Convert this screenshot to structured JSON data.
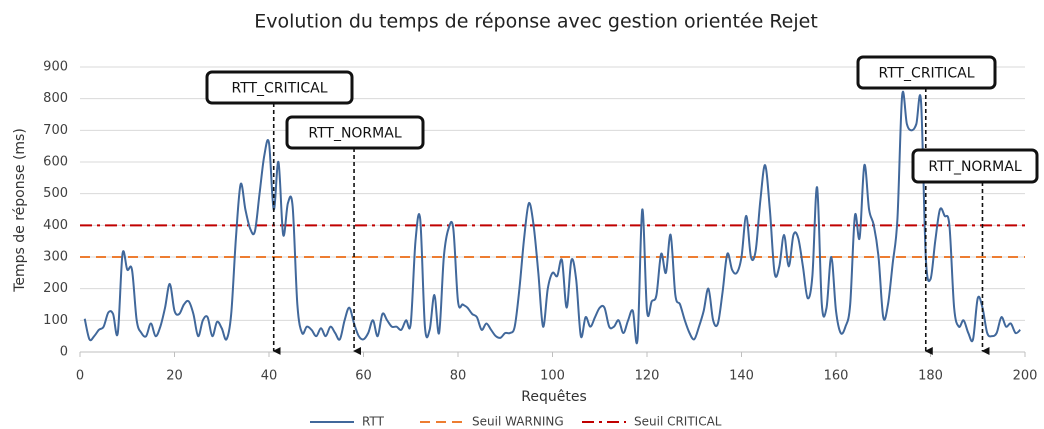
{
  "chart_data": {
    "type": "line",
    "title": "Evolution du temps de réponse avec gestion orientée Rejet",
    "x_label": "Requêtes",
    "y_label": "Temps de réponse (ms)",
    "x": [
      1,
      2,
      3,
      4,
      5,
      6,
      7,
      8,
      9,
      10,
      11,
      12,
      13,
      14,
      15,
      16,
      17,
      18,
      19,
      20,
      21,
      22,
      23,
      24,
      25,
      26,
      27,
      28,
      29,
      30,
      31,
      32,
      33,
      34,
      35,
      36,
      37,
      38,
      39,
      40,
      41,
      42,
      43,
      44,
      45,
      46,
      47,
      48,
      49,
      50,
      51,
      52,
      53,
      54,
      55,
      56,
      57,
      58,
      59,
      60,
      61,
      62,
      63,
      64,
      65,
      66,
      67,
      68,
      69,
      70,
      71,
      72,
      73,
      74,
      75,
      76,
      77,
      78,
      79,
      80,
      81,
      82,
      83,
      84,
      85,
      86,
      87,
      88,
      89,
      90,
      91,
      92,
      93,
      94,
      95,
      96,
      97,
      98,
      99,
      100,
      101,
      102,
      103,
      104,
      105,
      106,
      107,
      108,
      109,
      110,
      111,
      112,
      113,
      114,
      115,
      116,
      117,
      118,
      119,
      120,
      121,
      122,
      123,
      124,
      125,
      126,
      127,
      128,
      129,
      130,
      131,
      132,
      133,
      134,
      135,
      136,
      137,
      138,
      139,
      140,
      141,
      142,
      143,
      144,
      145,
      146,
      147,
      148,
      149,
      150,
      151,
      152,
      153,
      154,
      155,
      156,
      157,
      158,
      159,
      160,
      161,
      162,
      163,
      164,
      165,
      166,
      167,
      168,
      169,
      170,
      171,
      172,
      173,
      174,
      175,
      176,
      177,
      178,
      179,
      180,
      181,
      182,
      183,
      184,
      185,
      186,
      187,
      188,
      189,
      190,
      191,
      192,
      193,
      194,
      195,
      196,
      197,
      198,
      199
    ],
    "series": [
      {
        "name": "RTT",
        "color": "#41689b",
        "values": [
          105,
          40,
          50,
          70,
          80,
          125,
          120,
          60,
          310,
          260,
          260,
          100,
          60,
          50,
          90,
          50,
          80,
          140,
          215,
          130,
          120,
          150,
          160,
          120,
          50,
          100,
          110,
          50,
          95,
          75,
          40,
          120,
          360,
          530,
          450,
          390,
          380,
          500,
          620,
          660,
          450,
          600,
          370,
          470,
          460,
          150,
          60,
          80,
          70,
          50,
          75,
          50,
          80,
          60,
          40,
          100,
          140,
          90,
          50,
          40,
          60,
          100,
          50,
          120,
          100,
          80,
          80,
          70,
          100,
          90,
          350,
          420,
          80,
          70,
          180,
          60,
          300,
          390,
          390,
          160,
          150,
          140,
          120,
          110,
          70,
          90,
          70,
          50,
          45,
          60,
          60,
          80,
          200,
          360,
          470,
          400,
          250,
          80,
          200,
          250,
          240,
          290,
          140,
          290,
          230,
          50,
          110,
          80,
          110,
          140,
          140,
          80,
          80,
          100,
          60,
          100,
          130,
          40,
          450,
          130,
          160,
          180,
          310,
          250,
          370,
          180,
          150,
          100,
          60,
          40,
          80,
          130,
          200,
          100,
          90,
          190,
          310,
          260,
          250,
          300,
          430,
          300,
          320,
          480,
          590,
          450,
          250,
          270,
          370,
          270,
          370,
          360,
          270,
          170,
          240,
          520,
          150,
          140,
          300,
          130,
          60,
          80,
          150,
          430,
          360,
          590,
          450,
          400,
          300,
          110,
          150,
          280,
          420,
          810,
          720,
          700,
          720,
          790,
          300,
          230,
          350,
          450,
          430,
          400,
          140,
          80,
          100,
          60,
          40,
          170,
          140,
          60,
          50,
          60,
          110,
          80,
          90,
          60,
          70
        ]
      }
    ],
    "thresholds": [
      {
        "name": "Seuil WARNING",
        "color": "#ed7d31",
        "value": 300,
        "dash": "dashed"
      },
      {
        "name": "Seuil CRITICAL",
        "color": "#c00000",
        "value": 400,
        "dash": "dashdot"
      }
    ],
    "annotations": [
      {
        "text": "RTT_CRITICAL",
        "x": 41
      },
      {
        "text": "RTT_NORMAL",
        "x": 58
      },
      {
        "text": "RTT_CRITICAL",
        "x": 179
      },
      {
        "text": "RTT_NORMAL",
        "x": 191
      }
    ],
    "xlim": [
      0,
      200
    ],
    "xticks": [
      0,
      20,
      40,
      60,
      80,
      100,
      120,
      140,
      160,
      180,
      200
    ],
    "ylim": [
      0,
      900
    ],
    "yticks": [
      0,
      100,
      200,
      300,
      400,
      500,
      600,
      700,
      800,
      900
    ],
    "grid": true,
    "legend": "bottom"
  }
}
